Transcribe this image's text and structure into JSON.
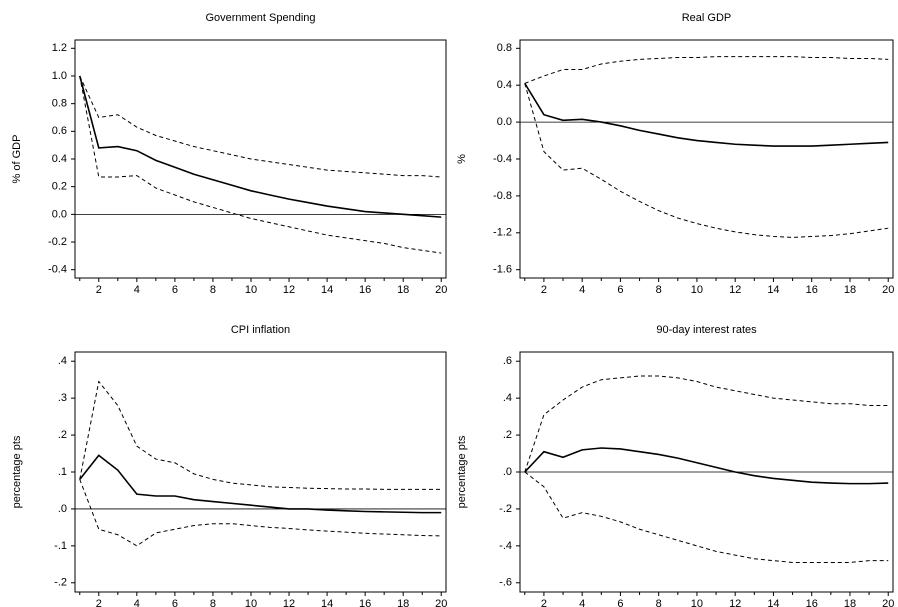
{
  "chart_data": [
    {
      "type": "line",
      "title": "Government Spending",
      "ylabel": "% of GDP",
      "x": [
        1,
        2,
        3,
        4,
        5,
        6,
        7,
        8,
        9,
        10,
        11,
        12,
        13,
        14,
        15,
        16,
        17,
        18,
        19,
        20
      ],
      "xlim": [
        0.75,
        20.25
      ],
      "xticks": [
        2,
        4,
        6,
        8,
        10,
        12,
        14,
        16,
        18,
        20
      ],
      "ylim": [
        -0.46,
        1.26
      ],
      "yticks": [
        {
          "value": 1.2,
          "label": "1.2"
        },
        {
          "value": 1,
          "label": "1.0"
        },
        0.8,
        0.6,
        0.4,
        0.2,
        {
          "value": 0,
          "label": "0.0"
        },
        -0.2,
        -0.4
      ],
      "hline": 0,
      "series": [
        {
          "style": "solid",
          "color": "#000000",
          "values": [
            1.0,
            0.48,
            0.49,
            0.46,
            0.39,
            0.34,
            0.29,
            0.25,
            0.21,
            0.17,
            0.14,
            0.11,
            0.085,
            0.06,
            0.04,
            0.02,
            0.01,
            0.0,
            -0.01,
            -0.02
          ]
        },
        {
          "style": "dashed",
          "color": "#000000",
          "values": [
            1.0,
            0.7,
            0.72,
            0.63,
            0.57,
            0.53,
            0.49,
            0.46,
            0.43,
            0.4,
            0.38,
            0.36,
            0.34,
            0.32,
            0.31,
            0.3,
            0.29,
            0.28,
            0.28,
            0.27
          ]
        },
        {
          "style": "dashed",
          "color": "#000000",
          "values": [
            1.0,
            0.27,
            0.27,
            0.28,
            0.19,
            0.14,
            0.09,
            0.05,
            0.01,
            -0.03,
            -0.06,
            -0.09,
            -0.12,
            -0.15,
            -0.17,
            -0.19,
            -0.21,
            -0.24,
            -0.26,
            -0.28
          ]
        }
      ]
    },
    {
      "type": "line",
      "title": "Real GDP",
      "ylabel": "%",
      "x": [
        1,
        2,
        3,
        4,
        5,
        6,
        7,
        8,
        9,
        10,
        11,
        12,
        13,
        14,
        15,
        16,
        17,
        18,
        19,
        20
      ],
      "xlim": [
        0.75,
        20.25
      ],
      "xticks": [
        2,
        4,
        6,
        8,
        10,
        12,
        14,
        16,
        18,
        20
      ],
      "ylim": [
        -1.69,
        0.89
      ],
      "yticks": [
        0.8,
        0.4,
        {
          "value": 0,
          "label": "0.0"
        },
        -0.4,
        -0.8,
        -1.2,
        -1.6
      ],
      "hline": 0,
      "series": [
        {
          "style": "solid",
          "color": "#000000",
          "values": [
            0.42,
            0.08,
            0.02,
            0.03,
            0.0,
            -0.04,
            -0.09,
            -0.13,
            -0.17,
            -0.2,
            -0.22,
            -0.24,
            -0.25,
            -0.26,
            -0.26,
            -0.26,
            -0.25,
            -0.24,
            -0.23,
            -0.22
          ]
        },
        {
          "style": "dashed",
          "color": "#000000",
          "values": [
            0.42,
            0.5,
            0.57,
            0.57,
            0.63,
            0.66,
            0.68,
            0.69,
            0.7,
            0.7,
            0.71,
            0.71,
            0.71,
            0.71,
            0.71,
            0.7,
            0.7,
            0.69,
            0.69,
            0.68
          ]
        },
        {
          "style": "dashed",
          "color": "#000000",
          "values": [
            0.42,
            -0.32,
            -0.52,
            -0.5,
            -0.62,
            -0.75,
            -0.86,
            -0.96,
            -1.04,
            -1.1,
            -1.15,
            -1.19,
            -1.22,
            -1.24,
            -1.25,
            -1.24,
            -1.23,
            -1.21,
            -1.18,
            -1.15
          ]
        }
      ]
    },
    {
      "type": "line",
      "title": "CPI inflation",
      "ylabel": "percentage pts",
      "x": [
        1,
        2,
        3,
        4,
        5,
        6,
        7,
        8,
        9,
        10,
        11,
        12,
        13,
        14,
        15,
        16,
        17,
        18,
        19,
        20
      ],
      "xlim": [
        0.75,
        20.25
      ],
      "xticks": [
        2,
        4,
        6,
        8,
        10,
        12,
        14,
        16,
        18,
        20
      ],
      "ylim": [
        -0.225,
        0.425
      ],
      "yticks": [
        {
          "value": 0.4,
          "label": ".4"
        },
        {
          "value": 0.3,
          "label": ".3"
        },
        {
          "value": 0.2,
          "label": ".2"
        },
        {
          "value": 0.1,
          "label": ".1"
        },
        {
          "value": 0,
          "label": ".0"
        },
        {
          "value": -0.1,
          "label": "-.1"
        },
        {
          "value": -0.2,
          "label": "-.2"
        }
      ],
      "hline": 0,
      "series": [
        {
          "style": "solid",
          "color": "#000000",
          "values": [
            0.08,
            0.145,
            0.105,
            0.04,
            0.035,
            0.035,
            0.025,
            0.02,
            0.015,
            0.01,
            0.005,
            0.0,
            0.0,
            -0.003,
            -0.005,
            -0.007,
            -0.008,
            -0.009,
            -0.01,
            -0.01
          ]
        },
        {
          "style": "dashed",
          "color": "#000000",
          "values": [
            0.08,
            0.345,
            0.28,
            0.17,
            0.135,
            0.125,
            0.095,
            0.08,
            0.07,
            0.065,
            0.06,
            0.058,
            0.056,
            0.055,
            0.054,
            0.054,
            0.053,
            0.053,
            0.053,
            0.053
          ]
        },
        {
          "style": "dashed",
          "color": "#000000",
          "values": [
            0.08,
            -0.055,
            -0.07,
            -0.1,
            -0.065,
            -0.055,
            -0.045,
            -0.04,
            -0.04,
            -0.045,
            -0.05,
            -0.053,
            -0.057,
            -0.06,
            -0.063,
            -0.066,
            -0.068,
            -0.07,
            -0.072,
            -0.073
          ]
        }
      ]
    },
    {
      "type": "line",
      "title": "90-day interest rates",
      "ylabel": "percentage pts",
      "x": [
        1,
        2,
        3,
        4,
        5,
        6,
        7,
        8,
        9,
        10,
        11,
        12,
        13,
        14,
        15,
        16,
        17,
        18,
        19,
        20
      ],
      "xlim": [
        0.75,
        20.25
      ],
      "xticks": [
        2,
        4,
        6,
        8,
        10,
        12,
        14,
        16,
        18,
        20
      ],
      "ylim": [
        -0.65,
        0.65
      ],
      "yticks": [
        {
          "value": 0.6,
          "label": ".6"
        },
        {
          "value": 0.4,
          "label": ".4"
        },
        {
          "value": 0.2,
          "label": ".2"
        },
        {
          "value": 0,
          "label": ".0"
        },
        {
          "value": -0.2,
          "label": "-.2"
        },
        {
          "value": -0.4,
          "label": "-.4"
        },
        {
          "value": -0.6,
          "label": "-.6"
        }
      ],
      "hline": 0,
      "series": [
        {
          "style": "solid",
          "color": "#000000",
          "values": [
            0.0,
            0.11,
            0.08,
            0.12,
            0.13,
            0.125,
            0.11,
            0.095,
            0.075,
            0.05,
            0.025,
            0.0,
            -0.02,
            -0.035,
            -0.045,
            -0.055,
            -0.06,
            -0.063,
            -0.063,
            -0.06
          ]
        },
        {
          "style": "dashed",
          "color": "#000000",
          "values": [
            0.0,
            0.31,
            0.39,
            0.46,
            0.5,
            0.51,
            0.52,
            0.52,
            0.51,
            0.49,
            0.46,
            0.44,
            0.42,
            0.4,
            0.39,
            0.38,
            0.37,
            0.37,
            0.36,
            0.36
          ]
        },
        {
          "style": "dashed",
          "color": "#000000",
          "values": [
            0.0,
            -0.08,
            -0.25,
            -0.22,
            -0.24,
            -0.27,
            -0.31,
            -0.34,
            -0.37,
            -0.4,
            -0.43,
            -0.45,
            -0.47,
            -0.48,
            -0.49,
            -0.49,
            -0.49,
            -0.49,
            -0.48,
            -0.48
          ]
        }
      ]
    }
  ]
}
